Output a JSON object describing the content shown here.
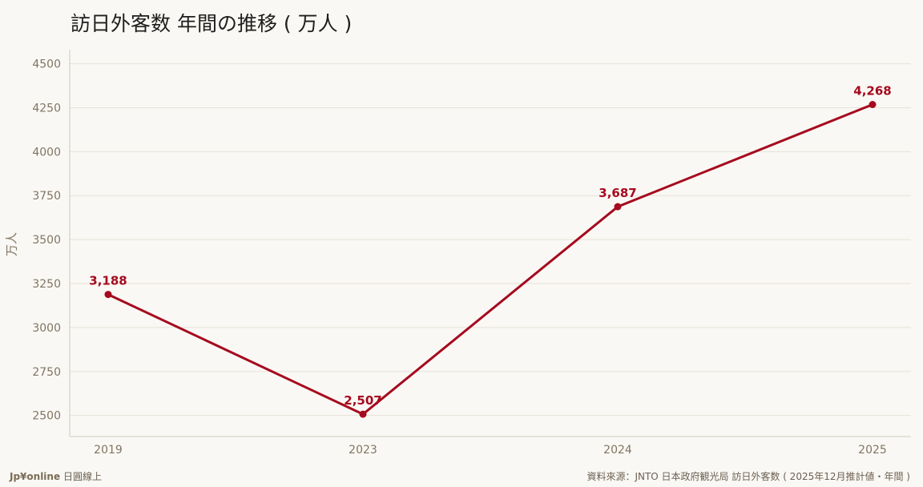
{
  "chart_data": {
    "type": "line",
    "title": "訪日外客数 年間の推移（万人）",
    "title_display": "訪日外客数 年間の推移 ( 万人 )",
    "xlabel": "",
    "ylabel": "万人",
    "categories": [
      "2019",
      "2023",
      "2024",
      "2025"
    ],
    "series": [
      {
        "values": [
          3188,
          2507,
          3687,
          4268
        ]
      }
    ],
    "data_labels": [
      "3,188",
      "2,507",
      "3,687",
      "4,268"
    ],
    "yticks": [
      2500,
      2750,
      3000,
      3250,
      3500,
      3750,
      4000,
      4250,
      4500
    ],
    "ylim": [
      2380,
      4580
    ],
    "grid": true,
    "colors": {
      "line": "#a50a1e",
      "label": "#a50a1e",
      "grid": "#e6e2da",
      "axis": "#cfcac0",
      "tick_text": "#807563"
    }
  },
  "footer": {
    "brand": "Jp¥online",
    "brand_sub": "日圓線上",
    "source": "資料來源：JNTO 日本政府観光局 訪日外客数 ( 2025年12月推計値・年間 )"
  }
}
